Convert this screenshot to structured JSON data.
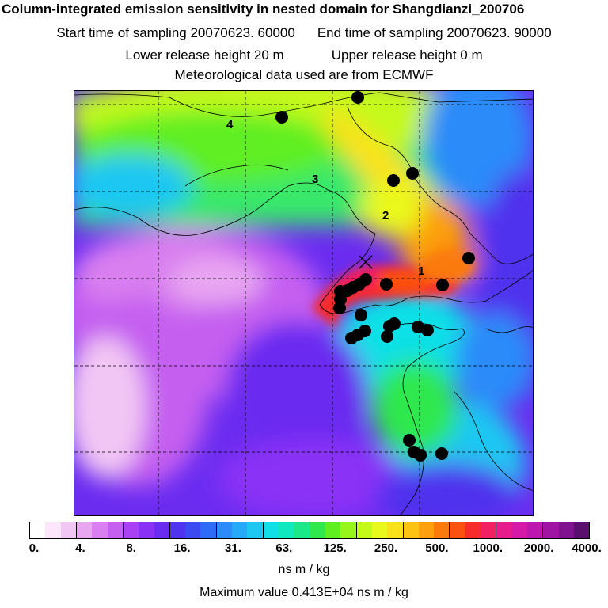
{
  "header": {
    "title": "Column-integrated emission sensitivity in nested domain for Shangdianzi_200706",
    "start_label": "Start time of sampling 20070623. 60000",
    "end_label": "End time of sampling 20070623. 90000",
    "lower_label": "Lower release height   20 m",
    "upper_label": "Upper release height    0 m",
    "met_label": "Meteorological data used are from ECMWF"
  },
  "map": {
    "markers": [
      {
        "label": "4"
      },
      {
        "label": "3"
      },
      {
        "label": "2"
      },
      {
        "label": "1"
      }
    ],
    "station_marker": "x-icon"
  },
  "colorbar": {
    "colors": [
      "#ffffff",
      "#fbe6fb",
      "#f2c6f4",
      "#e8a6f1",
      "#d97ff0",
      "#c45ff0",
      "#a942f5",
      "#8a31f6",
      "#6a2cf0",
      "#4f33ee",
      "#3b4bf1",
      "#2e6bf6",
      "#2a8bf9",
      "#26aaf8",
      "#1ec7f2",
      "#10e0e6",
      "#10e8c0",
      "#1ce88a",
      "#2fe84e",
      "#5fef21",
      "#97f51b",
      "#c5f91a",
      "#e9f91e",
      "#fae21a",
      "#fdc313",
      "#fca00d",
      "#fb7a0a",
      "#fa5010",
      "#f72a2c",
      "#f21f63",
      "#e61c8c",
      "#d51aa8",
      "#be17b0",
      "#a014a3",
      "#7f128f",
      "#5a0f6e"
    ],
    "tick_labels": [
      "0.",
      "4.",
      "8.",
      "16.",
      "31.",
      "63.",
      "125.",
      "250.",
      "500.",
      "1000.",
      "2000.",
      "4000."
    ],
    "units": "ns m / kg",
    "max_label": "Maximum value  0.413E+04 ns m / kg"
  }
}
